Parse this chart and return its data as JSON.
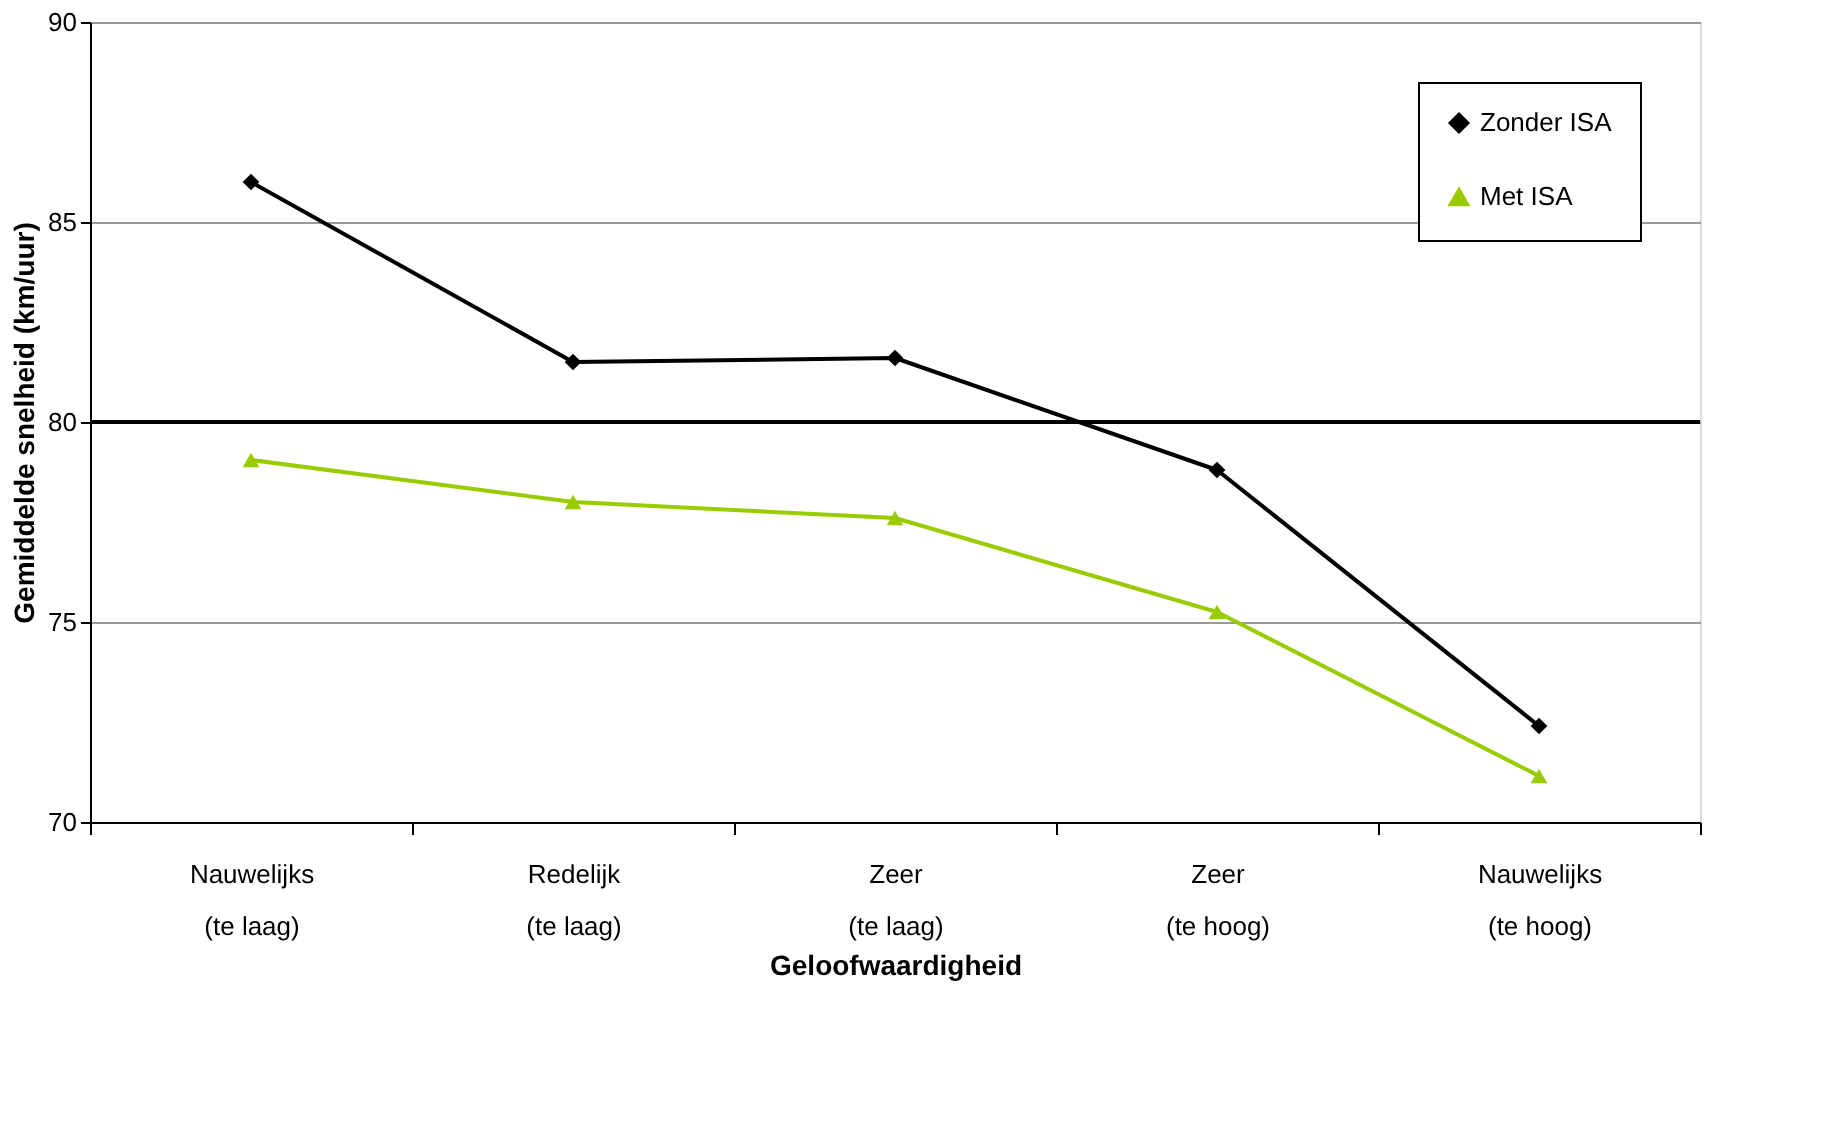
{
  "chart_data": {
    "type": "line",
    "xlabel": "Geloofwaardigheid",
    "ylabel": "Gemiddelde snelheid (km/uur)",
    "categories": [
      "Nauwelijks\n(te laag)",
      "Redelijk\n(te laag)",
      "Zeer\n(te laag)",
      "Zeer\n(te hoog)",
      "Nauwelijks\n(te hoog)"
    ],
    "series": [
      {
        "name": "Zonder ISA",
        "color": "#000000",
        "marker": "diamond",
        "values": [
          86.0,
          81.5,
          81.6,
          78.8,
          72.4
        ]
      },
      {
        "name": "Met ISA",
        "color": "#99cc00",
        "marker": "triangle",
        "values": [
          79.05,
          78.0,
          77.6,
          75.25,
          71.15
        ]
      }
    ],
    "ylim": [
      70,
      90
    ],
    "yticks": [
      70,
      75,
      80,
      85,
      90
    ],
    "grid": "y",
    "ref_lines": [
      {
        "axis": "y",
        "value": 80,
        "color": "#000000"
      }
    ],
    "legend": "top right",
    "line_style": "solid"
  }
}
